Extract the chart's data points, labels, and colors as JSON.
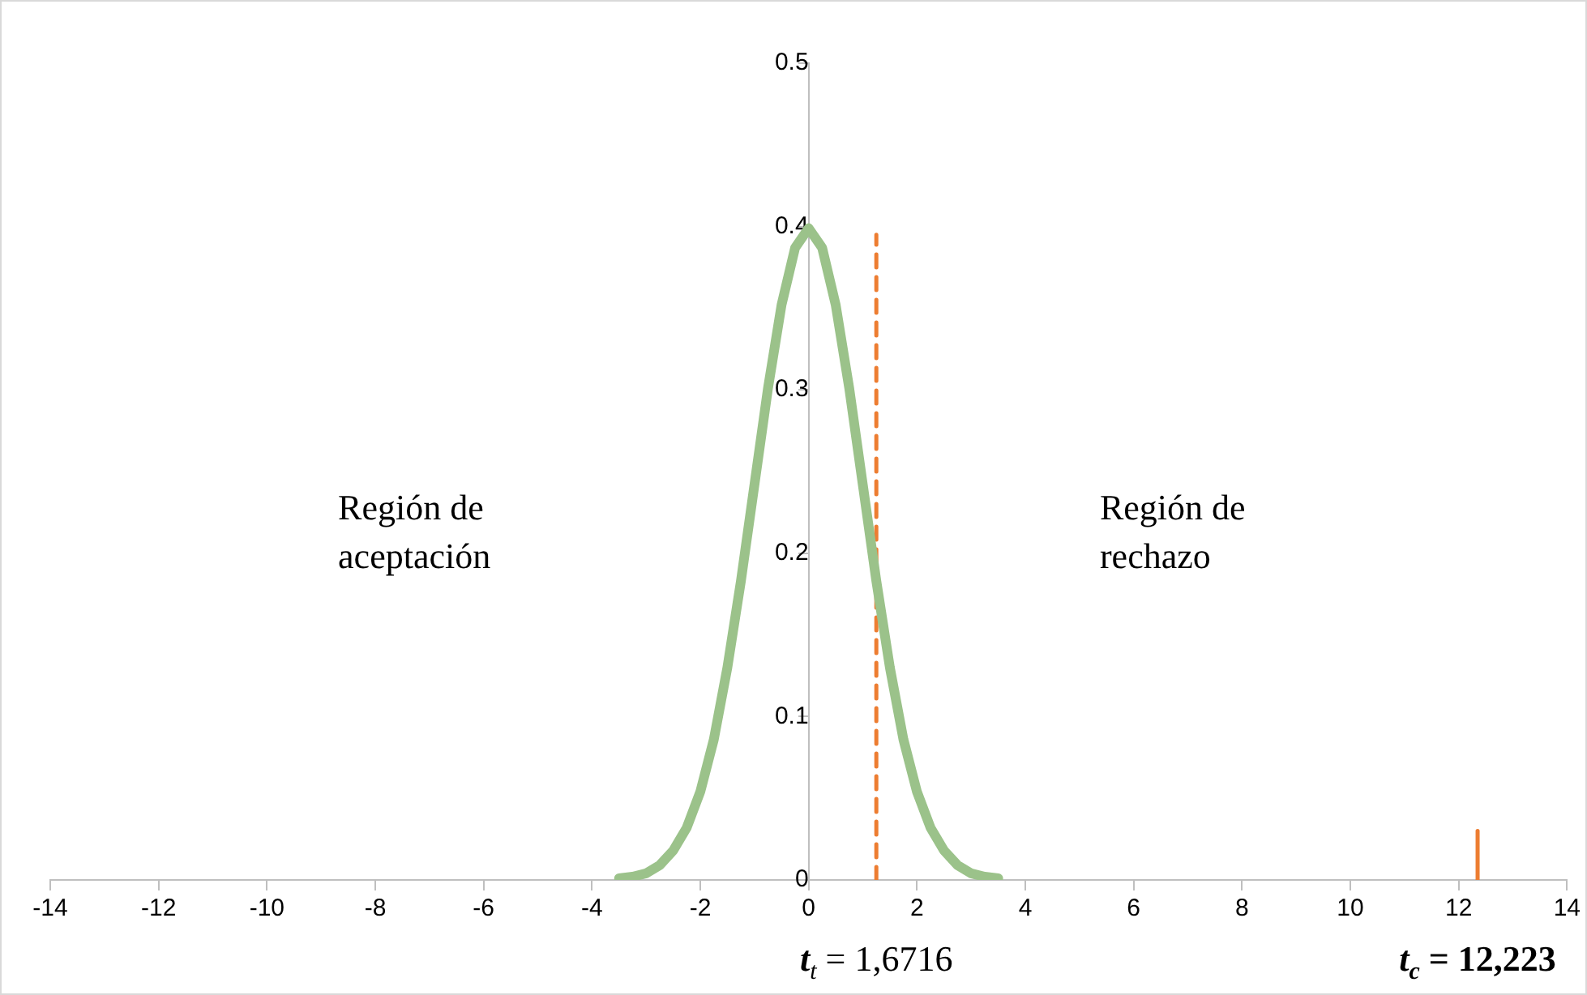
{
  "chart_data": {
    "type": "line",
    "xlim": [
      -14,
      14
    ],
    "xticks": [
      -14,
      -12,
      -10,
      -8,
      -6,
      -4,
      -2,
      0,
      2,
      4,
      6,
      8,
      10,
      12,
      14
    ],
    "ylim": [
      0,
      0.5
    ],
    "yticks": [
      0,
      0.1,
      0.2,
      0.3,
      0.4,
      0.5
    ],
    "grid": false,
    "legend": false,
    "marker": "none",
    "series": [
      {
        "color": "#9bc28a",
        "line_style": "solid",
        "x": [
          -3.5,
          -3.25,
          -3,
          -2.75,
          -2.5,
          -2.25,
          -2,
          -1.75,
          -1.5,
          -1.25,
          -1,
          -0.75,
          -0.5,
          -0.25,
          0,
          0.25,
          0.5,
          0.75,
          1,
          1.25,
          1.5,
          1.75,
          2,
          2.25,
          2.5,
          2.75,
          3,
          3.25,
          3.5
        ],
        "values": [
          0.001,
          0.002,
          0.004,
          0.009,
          0.018,
          0.032,
          0.054,
          0.086,
          0.13,
          0.183,
          0.242,
          0.301,
          0.352,
          0.387,
          0.399,
          0.387,
          0.352,
          0.301,
          0.242,
          0.183,
          0.13,
          0.086,
          0.054,
          0.032,
          0.018,
          0.009,
          0.004,
          0.002,
          0.001
        ]
      },
      {
        "color": "#ed7d31",
        "line_style": "dashed",
        "x": [
          1.25,
          1.25
        ],
        "values": [
          0,
          0.395
        ]
      },
      {
        "color": "#ed7d31",
        "line_style": "solid",
        "x": [
          12.35,
          12.35
        ],
        "values": [
          0,
          0.03
        ]
      }
    ],
    "annotations": [
      "Región de aceptación",
      "Región de rechazo",
      {
        "text": "t$_{t}$ = 1,6716",
        "x": 1.25,
        "y": 0
      },
      {
        "text": "t$_{c}$ = 12,223",
        "x": 12.35,
        "y": 0
      }
    ]
  }
}
